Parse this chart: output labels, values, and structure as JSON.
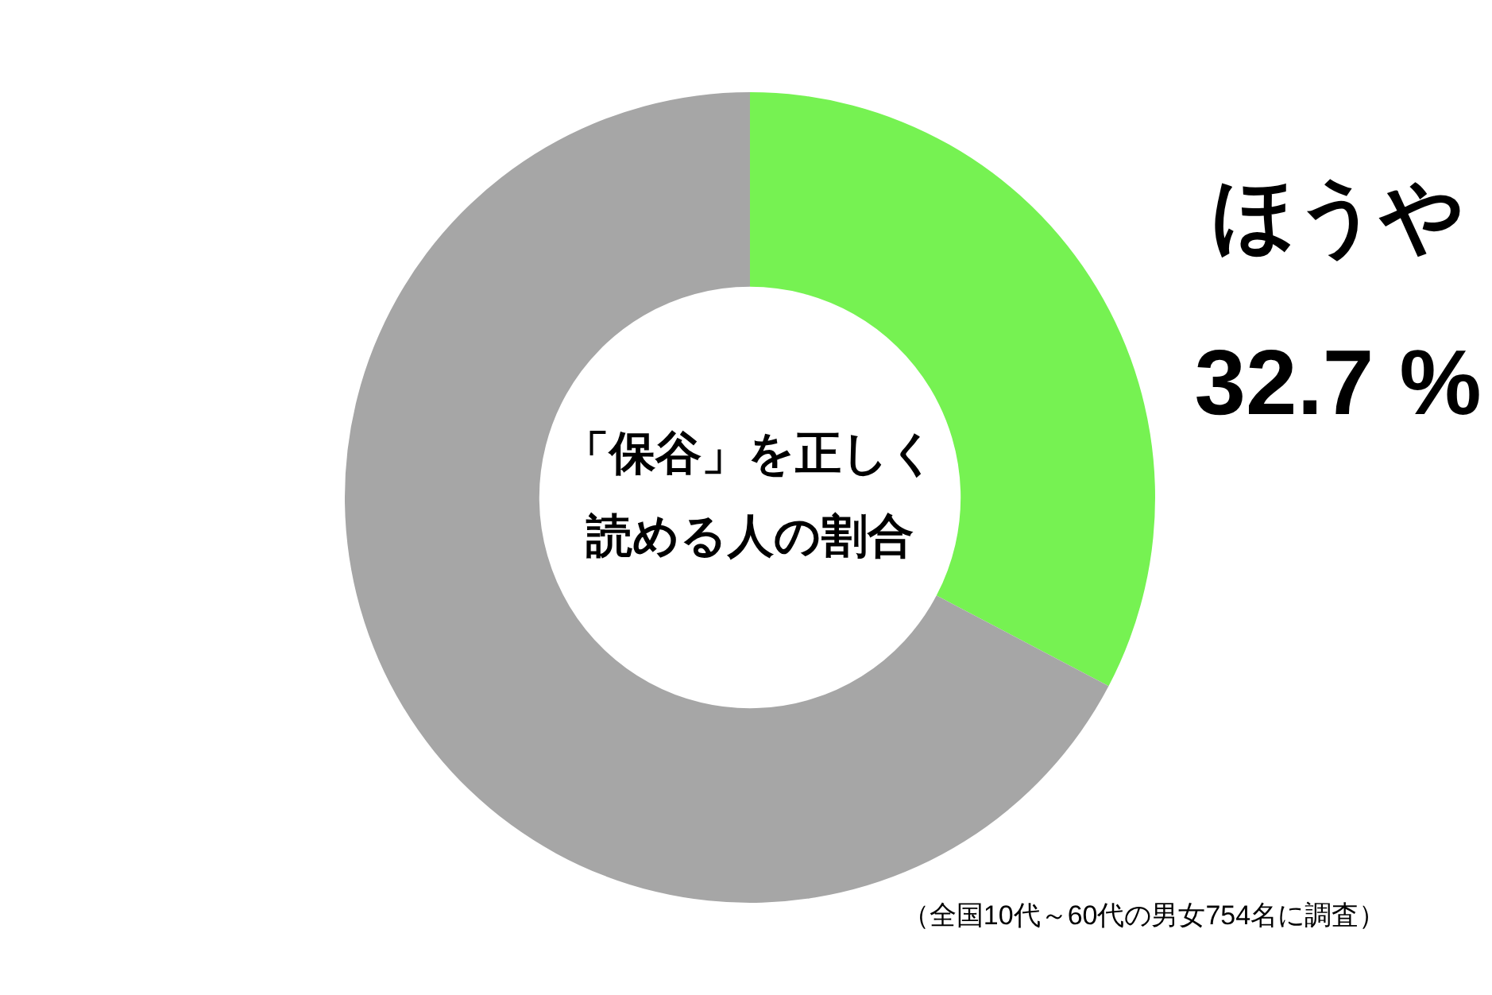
{
  "chart_data": {
    "type": "donut",
    "title": "「保谷」を正しく読める人の割合",
    "categories": [
      "ほうや",
      null
    ],
    "values": [
      32.7,
      67.3
    ],
    "colors": [
      "#76f252",
      "#a6a6a6"
    ],
    "value_labels": [
      "32.7 %",
      null
    ],
    "legend": false,
    "annotations": [
      "（全国10代～60代の男女754名に調査）"
    ]
  }
}
